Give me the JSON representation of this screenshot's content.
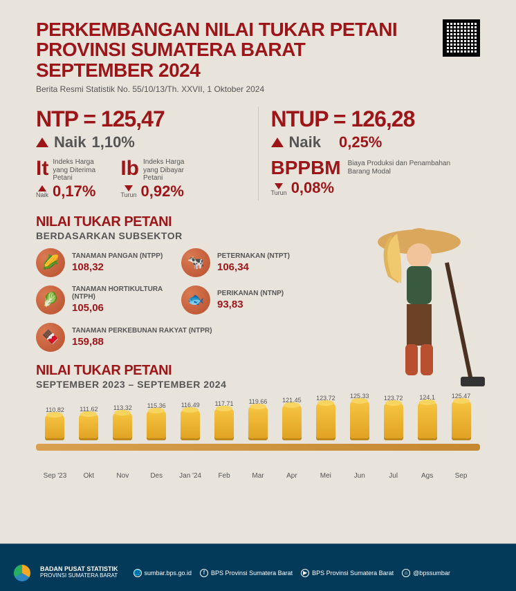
{
  "header": {
    "title": "PERKEMBANGAN NILAI TUKAR PETANI PROVINSI SUMATERA BARAT SEPTEMBER 2024",
    "subtitle": "Berita Resmi Statistik No. 55/10/13/Th. XXVII, 1 Oktober 2024"
  },
  "ntp": {
    "equation": "NTP = 125,47",
    "direction": "up",
    "direction_label": "Naik",
    "change": "1,10%"
  },
  "it": {
    "symbol": "It",
    "desc": "Indeks Harga yang Diterima Petani",
    "direction": "up",
    "direction_label": "Naik",
    "change": "0,17%"
  },
  "ib": {
    "symbol": "Ib",
    "desc": "Indeks Harga yang Dibayar Petani",
    "direction": "down",
    "direction_label": "Turun",
    "change": "0,92%"
  },
  "ntup": {
    "equation": "NTUP = 126,28",
    "direction": "up",
    "direction_label": "Naik",
    "change": "0,25%"
  },
  "bppbm": {
    "symbol": "BPPBM",
    "desc": "Biaya Produksi dan Penambahan Barang Modal",
    "direction": "down",
    "direction_label": "Turun",
    "change": "0,08%"
  },
  "subsector": {
    "title": "NILAI TUKAR PETANI",
    "subtitle": "BERDASARKAN SUBSEKTOR",
    "items": [
      {
        "name": "TANAMAN PANGAN (NTPP)",
        "value": "108,32",
        "glyph": "🌽"
      },
      {
        "name": "PETERNAKAN (NTPT)",
        "value": "106,34",
        "glyph": "🐄"
      },
      {
        "name": "TANAMAN HORTIKULTURA (NTPH)",
        "value": "105,06",
        "glyph": "🥬"
      },
      {
        "name": "PERIKANAN (NTNP)",
        "value": "93,83",
        "glyph": "🐟"
      },
      {
        "name": "TANAMAN PERKEBUNAN RAKYAT (NTPR)",
        "value": "159,88",
        "glyph": "🍫"
      }
    ]
  },
  "timeseries": {
    "title": "NILAI TUKAR PETANI",
    "subtitle": "SEPTEMBER 2023 – SEPTEMBER 2024",
    "min": 90,
    "max": 130,
    "points": [
      {
        "label": "Sep '23",
        "value": "110,82",
        "num": 110.82
      },
      {
        "label": "Okt",
        "value": "111,62",
        "num": 111.62
      },
      {
        "label": "Nov",
        "value": "113,32",
        "num": 113.32
      },
      {
        "label": "Des",
        "value": "115,36",
        "num": 115.36
      },
      {
        "label": "Jan '24",
        "value": "116,49",
        "num": 116.49
      },
      {
        "label": "Feb",
        "value": "117,71",
        "num": 117.71
      },
      {
        "label": "Mar",
        "value": "119,66",
        "num": 119.66
      },
      {
        "label": "Apr",
        "value": "121,45",
        "num": 121.45
      },
      {
        "label": "Mei",
        "value": "123,72",
        "num": 123.72
      },
      {
        "label": "Jun",
        "value": "125,33",
        "num": 125.33
      },
      {
        "label": "Jul",
        "value": "123,72",
        "num": 123.72
      },
      {
        "label": "Ags",
        "value": "124,1",
        "num": 124.1
      },
      {
        "label": "Sep",
        "value": "125,47",
        "num": 125.47
      }
    ]
  },
  "footer": {
    "org_line1": "BADAN PUSAT STATISTIK",
    "org_line2": "PROVINSI SUMATERA BARAT",
    "links": [
      {
        "icon": "🌐",
        "text": "sumbar.bps.go.id"
      },
      {
        "icon": "f",
        "text": "BPS Provinsi Sumatera Barat"
      },
      {
        "icon": "▶",
        "text": "BPS Provinsi Sumatera Barat"
      },
      {
        "icon": "⌂",
        "text": "@bpssumbar"
      }
    ]
  },
  "colors": {
    "brand_red": "#9c1519",
    "text_gray": "#555555",
    "bg_cream": "#e8e3db",
    "footer_navy": "#033a5a",
    "coin_gold": "#f5c542",
    "icon_orange": "#c5562e"
  }
}
